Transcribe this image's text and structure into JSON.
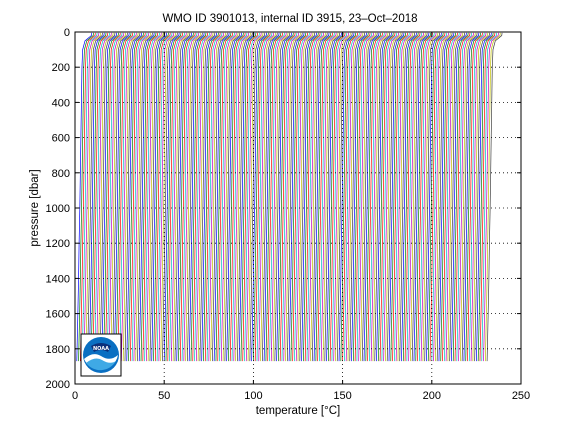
{
  "chart_data": {
    "type": "line",
    "title": "WMO ID 3901013, internal ID 3915, 23–Oct–2018",
    "xlabel_prefix": "temperature [",
    "xlabel_unit": "°C",
    "xlabel_suffix": "]",
    "ylabel": "pressure [dbar]",
    "xlim": [
      0,
      250
    ],
    "ylim": [
      2000,
      0
    ],
    "y_reversed": true,
    "xticks": [
      0,
      50,
      100,
      150,
      200,
      250
    ],
    "yticks": [
      0,
      200,
      400,
      600,
      800,
      1000,
      1200,
      1400,
      1600,
      1800,
      2000
    ],
    "grid": "dotted",
    "profiles": {
      "count": 231,
      "offset_step_per_profile": 1,
      "deep_temperature_first": 1,
      "max_pressure": 1870,
      "surface_pressure": 5,
      "base_profile": [
        [
          5,
          9.4
        ],
        [
          20,
          9.2
        ],
        [
          50,
          5.6
        ],
        [
          100,
          4.3
        ],
        [
          200,
          3.9
        ],
        [
          400,
          3.6
        ],
        [
          600,
          3.3
        ],
        [
          800,
          3.0
        ],
        [
          1000,
          2.7
        ],
        [
          1200,
          2.3
        ],
        [
          1400,
          2.0
        ],
        [
          1600,
          1.6
        ],
        [
          1870,
          1.0
        ]
      ],
      "colors": [
        "#0000ff",
        "#008000",
        "#ff0000",
        "#00bfbf",
        "#bf00bf",
        "#bfbf00",
        "#404040"
      ]
    },
    "logo": "NOAA"
  }
}
